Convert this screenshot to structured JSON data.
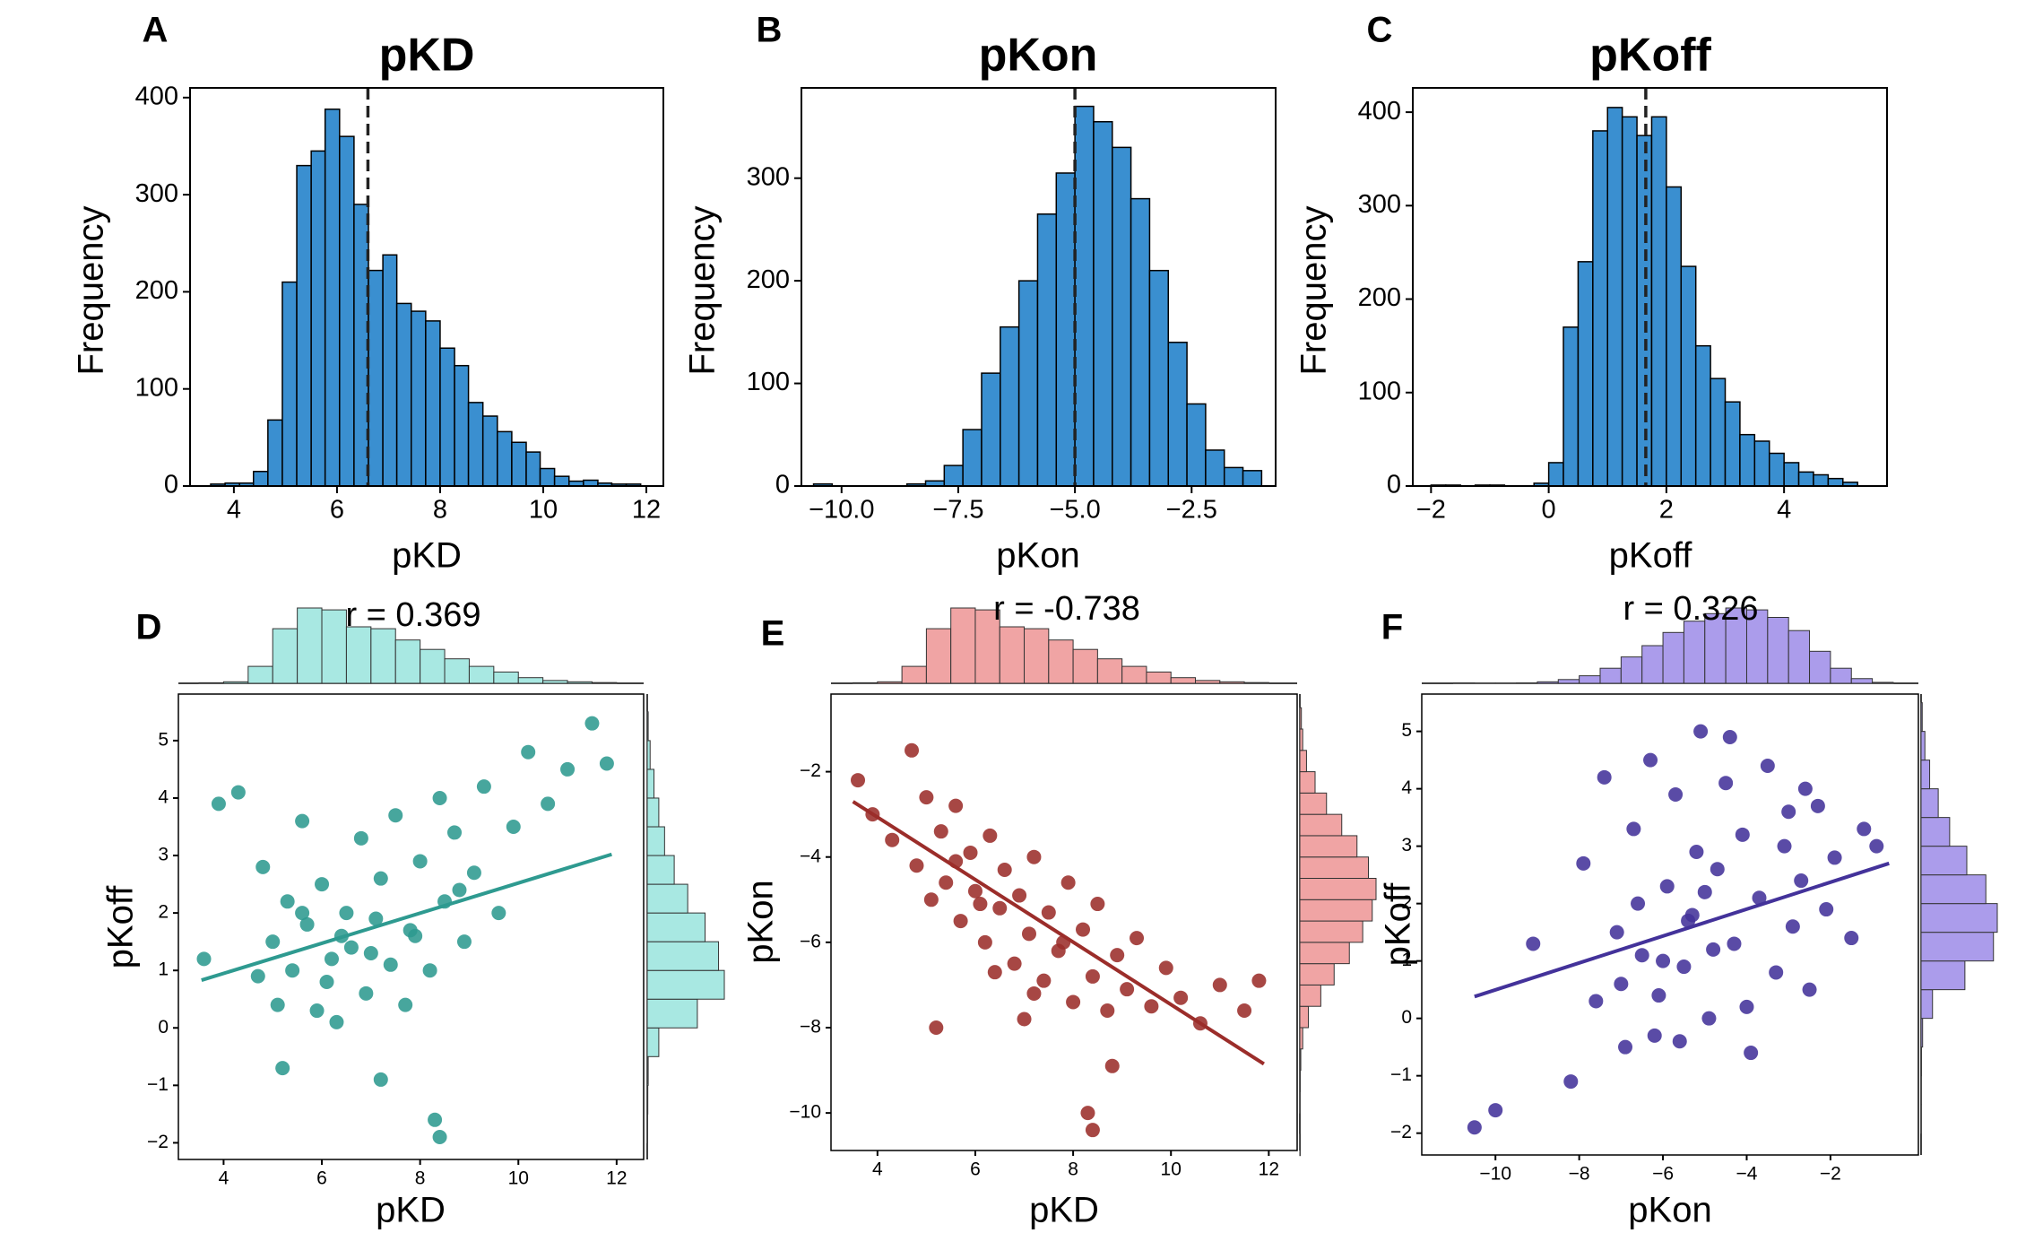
{
  "chart_data": [
    {
      "type": "histogram",
      "panel_label": "A",
      "title": "pKD",
      "xlabel": "pKD",
      "ylabel": "Frequency",
      "color": "#3a8fd0",
      "bins": [
        3.55,
        3.83,
        4.11,
        4.38,
        4.66,
        4.94,
        5.22,
        5.5,
        5.77,
        6.05,
        6.33,
        6.61,
        6.89,
        7.16,
        7.44,
        7.72,
        8.0,
        8.28,
        8.55,
        8.83,
        9.11,
        9.39,
        9.67,
        9.94,
        10.22,
        10.5,
        10.78,
        11.06,
        11.33,
        11.61,
        11.89
      ],
      "counts": [
        2,
        3,
        3,
        15,
        68,
        210,
        330,
        345,
        388,
        360,
        290,
        222,
        238,
        188,
        180,
        170,
        142,
        124,
        86,
        72,
        56,
        45,
        35,
        18,
        10,
        5,
        6,
        3,
        2,
        2
      ],
      "mean": 6.6,
      "xlim": [
        3.15,
        12.33
      ],
      "xticks": [
        4,
        6,
        8,
        10,
        12
      ],
      "ylim": [
        0,
        410
      ],
      "yticks": [
        0,
        100,
        200,
        300,
        400
      ]
    },
    {
      "type": "histogram",
      "panel_label": "B",
      "title": "pKon",
      "xlabel": "pKon",
      "ylabel": "Frequency",
      "color": "#3a8fd0",
      "bins": [
        -10.6,
        -10.2,
        -9.8,
        -9.4,
        -9.0,
        -8.6,
        -8.2,
        -7.8,
        -7.4,
        -7.0,
        -6.6,
        -6.2,
        -5.8,
        -5.4,
        -5.0,
        -4.6,
        -4.2,
        -3.8,
        -3.4,
        -3.0,
        -2.6,
        -2.2,
        -1.8,
        -1.4,
        -1.0
      ],
      "counts": [
        2,
        0,
        0,
        0,
        0,
        2,
        5,
        20,
        55,
        110,
        155,
        200,
        265,
        305,
        370,
        355,
        330,
        280,
        210,
        140,
        80,
        35,
        18,
        15
      ],
      "mean": -5.0,
      "xlim": [
        -10.86,
        -0.7
      ],
      "xticks": [
        {
          "value": -10,
          "label": "−10.0"
        },
        {
          "value": -7.5,
          "label": "−7.5"
        },
        {
          "value": -5,
          "label": "−5.0"
        },
        {
          "value": -2.5,
          "label": "−2.5"
        }
      ],
      "ylim": [
        0,
        388
      ],
      "yticks": [
        0,
        100,
        200,
        300
      ]
    },
    {
      "type": "histogram",
      "panel_label": "C",
      "title": "pKoff",
      "xlabel": "pKoff",
      "ylabel": "Frequency",
      "color": "#3a8fd0",
      "bins": [
        -2.0,
        -1.75,
        -1.5,
        -1.25,
        -1.0,
        -0.75,
        -0.5,
        -0.25,
        0,
        0.25,
        0.5,
        0.75,
        1.0,
        1.25,
        1.5,
        1.75,
        2.0,
        2.25,
        2.5,
        2.75,
        3.0,
        3.25,
        3.5,
        3.75,
        4.0,
        4.25,
        4.5,
        4.75,
        5.0,
        5.25
      ],
      "counts": [
        1,
        1,
        0,
        1,
        1,
        0,
        0,
        3,
        25,
        170,
        240,
        380,
        405,
        395,
        375,
        395,
        320,
        235,
        150,
        115,
        90,
        55,
        48,
        35,
        25,
        15,
        12,
        8,
        4
      ],
      "mean": 1.65,
      "xlim": [
        -2.31,
        5.75
      ],
      "xticks": [
        {
          "value": -2,
          "label": "−2"
        },
        0,
        2,
        4
      ],
      "ylim": [
        0,
        426
      ],
      "yticks": [
        0,
        100,
        200,
        300,
        400
      ]
    },
    {
      "type": "scatter",
      "panel_label": "D",
      "annotation": "r = 0.369",
      "xlabel": "pKD",
      "ylabel": "pKoff",
      "color": "#2e9a90",
      "marginal_color": "#a8e8e2",
      "marginal_edge": "#40c8c0",
      "x": [
        3.6,
        3.9,
        4.3,
        4.7,
        4.8,
        5.0,
        5.1,
        5.3,
        5.4,
        5.6,
        5.7,
        5.9,
        6.0,
        6.2,
        6.3,
        6.5,
        6.6,
        6.8,
        6.9,
        7.1,
        7.2,
        7.4,
        7.5,
        7.7,
        7.9,
        8.0,
        8.2,
        8.4,
        8.5,
        8.7,
        8.9,
        9.1,
        9.3,
        9.6,
        9.9,
        10.2,
        10.6,
        11.0,
        11.5,
        11.8,
        5.2,
        6.1,
        7.0,
        7.8,
        8.3,
        8.4,
        7.2,
        5.6,
        6.4,
        8.8
      ],
      "y": [
        1.2,
        3.9,
        4.1,
        0.9,
        2.8,
        1.5,
        0.4,
        2.2,
        1.0,
        3.6,
        1.8,
        0.3,
        2.5,
        1.2,
        0.1,
        2.0,
        1.4,
        3.3,
        0.6,
        1.9,
        2.6,
        1.1,
        3.7,
        0.4,
        1.6,
        2.9,
        1.0,
        4.0,
        2.2,
        3.4,
        1.5,
        2.7,
        4.2,
        2.0,
        3.5,
        4.8,
        3.9,
        4.5,
        5.3,
        4.6,
        -0.7,
        0.8,
        1.3,
        1.7,
        -1.6,
        -1.9,
        -0.9,
        2.0,
        1.6,
        2.4
      ],
      "regression": {
        "x": [
          3.55,
          11.9
        ],
        "y": [
          0.83,
          3.02
        ]
      },
      "x_marginal": {
        "bins": [
          3.5,
          4.0,
          4.5,
          5.0,
          5.5,
          6.0,
          6.5,
          7.0,
          7.5,
          8.0,
          8.5,
          9.0,
          9.5,
          10.0,
          10.5,
          11.0,
          11.5,
          12.0
        ],
        "counts": [
          3,
          8,
          90,
          290,
          400,
          390,
          300,
          290,
          230,
          180,
          130,
          90,
          60,
          30,
          15,
          8,
          4
        ]
      },
      "y_marginal": {
        "bins": [
          -2.0,
          -1.5,
          -1.0,
          -0.5,
          0,
          0.5,
          1.0,
          1.5,
          2.0,
          2.5,
          3.0,
          3.5,
          4.0,
          4.5,
          5.0,
          5.5
        ],
        "counts": [
          2,
          3,
          5,
          60,
          260,
          400,
          370,
          300,
          210,
          140,
          90,
          60,
          35,
          15,
          5
        ]
      },
      "xlim": [
        3.08,
        12.55
      ],
      "xticks": [
        4,
        6,
        8,
        10,
        12
      ],
      "ylim": [
        -2.29,
        5.81
      ],
      "yticks": [
        {
          "value": -2,
          "label": "−2"
        },
        {
          "value": -1,
          "label": "−1"
        },
        0,
        1,
        2,
        3,
        4,
        5
      ]
    },
    {
      "type": "scatter",
      "panel_label": "E",
      "annotation": "r = -0.738",
      "xlabel": "pKD",
      "ylabel": "pKon",
      "color": "#9b2d2a",
      "marginal_color": "#f0a4a4",
      "marginal_edge": "#d05050",
      "x": [
        3.6,
        3.9,
        4.3,
        4.7,
        4.8,
        5.0,
        5.1,
        5.3,
        5.4,
        5.6,
        5.7,
        5.9,
        6.0,
        6.2,
        6.3,
        6.5,
        6.6,
        6.8,
        6.9,
        7.1,
        7.2,
        7.4,
        7.5,
        7.7,
        7.9,
        8.0,
        8.2,
        8.4,
        8.5,
        8.7,
        8.9,
        9.1,
        9.3,
        9.6,
        9.9,
        10.2,
        10.6,
        11.0,
        11.5,
        11.8,
        5.2,
        6.1,
        7.0,
        7.8,
        8.3,
        8.4,
        7.2,
        5.6,
        6.4,
        8.8
      ],
      "y": [
        -2.2,
        -3.0,
        -3.6,
        -1.5,
        -4.2,
        -2.6,
        -5.0,
        -3.4,
        -4.6,
        -2.8,
        -5.5,
        -3.9,
        -4.8,
        -6.0,
        -3.5,
        -5.2,
        -4.3,
        -6.5,
        -4.9,
        -5.8,
        -4.0,
        -6.9,
        -5.3,
        -6.2,
        -4.6,
        -7.4,
        -5.7,
        -6.8,
        -5.1,
        -7.6,
        -6.3,
        -7.1,
        -5.9,
        -7.5,
        -6.6,
        -7.3,
        -7.9,
        -7.0,
        -7.6,
        -6.9,
        -8.0,
        -5.1,
        -7.8,
        -6.0,
        -10.0,
        -10.4,
        -7.2,
        -4.1,
        -6.7,
        -8.9
      ],
      "regression": {
        "x": [
          3.5,
          11.9
        ],
        "y": [
          -2.7,
          -8.85
        ]
      },
      "x_marginal": {
        "bins": [
          3.5,
          4.0,
          4.5,
          5.0,
          5.5,
          6.0,
          6.5,
          7.0,
          7.5,
          8.0,
          8.5,
          9.0,
          9.5,
          10.0,
          10.5,
          11.0,
          11.5,
          12.0
        ],
        "counts": [
          3,
          8,
          90,
          290,
          400,
          390,
          300,
          290,
          230,
          180,
          130,
          90,
          60,
          30,
          15,
          8,
          4
        ]
      },
      "y_marginal": {
        "bins": [
          -11.0,
          -10.5,
          -10.0,
          -9.5,
          -9.0,
          -8.5,
          -8.0,
          -7.5,
          -7.0,
          -6.5,
          -6.0,
          -5.5,
          -5.0,
          -4.5,
          -4.0,
          -3.5,
          -3.0,
          -2.5,
          -2.0,
          -1.5,
          -1.0,
          -0.5
        ],
        "counts": [
          2,
          0,
          1,
          2,
          5,
          15,
          45,
          110,
          180,
          260,
          330,
          380,
          400,
          360,
          300,
          220,
          140,
          80,
          35,
          15,
          8
        ]
      },
      "xlim": [
        3.05,
        12.58
      ],
      "xticks": [
        4,
        6,
        8,
        10,
        12
      ],
      "ylim": [
        -10.88,
        -0.18
      ],
      "yticks": [
        {
          "value": -10,
          "label": "−10"
        },
        {
          "value": -8,
          "label": "−8"
        },
        {
          "value": -6,
          "label": "−6"
        },
        {
          "value": -4,
          "label": "−4"
        },
        {
          "value": -2,
          "label": "−2"
        }
      ]
    },
    {
      "type": "scatter",
      "panel_label": "F",
      "annotation": "r = 0.326",
      "xlabel": "pKon",
      "ylabel": "pKoff",
      "color": "#43329a",
      "marginal_color": "#ab9ceb",
      "marginal_edge": "#5544c4",
      "x": [
        -10.5,
        -10.0,
        -9.1,
        -8.2,
        -7.9,
        -7.6,
        -7.4,
        -7.1,
        -6.9,
        -6.7,
        -6.5,
        -6.3,
        -6.1,
        -5.9,
        -5.7,
        -5.5,
        -5.3,
        -5.1,
        -4.9,
        -4.7,
        -4.5,
        -4.3,
        -4.1,
        -3.9,
        -3.7,
        -3.5,
        -3.3,
        -3.1,
        -2.9,
        -2.7,
        -2.5,
        -2.3,
        -2.1,
        -1.9,
        -1.5,
        -1.2,
        -0.9,
        -6.0,
        -5.0,
        -4.4,
        -5.6,
        -4.8,
        -6.6,
        -3.0,
        -7.0,
        -5.4,
        -4.0,
        -2.6,
        -6.2,
        -5.2
      ],
      "y": [
        -1.9,
        -1.6,
        1.3,
        -1.1,
        2.7,
        0.3,
        4.2,
        1.5,
        -0.5,
        3.3,
        1.1,
        4.5,
        0.4,
        2.3,
        3.9,
        0.9,
        1.8,
        5.0,
        0.0,
        2.6,
        4.1,
        1.3,
        3.2,
        -0.6,
        2.1,
        4.4,
        0.8,
        3.0,
        1.6,
        2.4,
        0.5,
        3.7,
        1.9,
        2.8,
        1.4,
        3.3,
        3.0,
        1.0,
        2.2,
        4.9,
        -0.4,
        1.2,
        2.0,
        3.6,
        0.6,
        1.7,
        0.2,
        4.0,
        -0.3,
        2.9
      ],
      "regression": {
        "x": [
          -10.5,
          -0.6
        ],
        "y": [
          0.38,
          2.7
        ]
      },
      "x_marginal": {
        "bins": [
          -11.0,
          -10.5,
          -10.0,
          -9.5,
          -9.0,
          -8.5,
          -8.0,
          -7.5,
          -7.0,
          -6.5,
          -6.0,
          -5.5,
          -5.0,
          -4.5,
          -4.0,
          -3.5,
          -3.0,
          -2.5,
          -2.0,
          -1.5,
          -1.0,
          -0.5
        ],
        "counts": [
          2,
          1,
          1,
          2,
          8,
          20,
          40,
          80,
          140,
          200,
          270,
          330,
          370,
          400,
          390,
          350,
          280,
          170,
          80,
          25,
          5
        ]
      },
      "y_marginal": {
        "bins": [
          -2.0,
          -1.5,
          -1.0,
          -0.5,
          0,
          0.5,
          1.0,
          1.5,
          2.0,
          2.5,
          3.0,
          3.5,
          4.0,
          4.5,
          5.0,
          5.5
        ],
        "counts": [
          1,
          1,
          2,
          8,
          60,
          230,
          380,
          400,
          340,
          240,
          150,
          90,
          45,
          20,
          6
        ]
      },
      "xlim": [
        -11.76,
        0.1
      ],
      "xticks": [
        {
          "value": -10,
          "label": "−10"
        },
        {
          "value": -8,
          "label": "−8"
        },
        {
          "value": -6,
          "label": "−6"
        },
        {
          "value": -4,
          "label": "−4"
        },
        {
          "value": -2,
          "label": "−2"
        }
      ],
      "ylim": [
        -2.38,
        5.65
      ],
      "yticks": [
        {
          "value": -2,
          "label": "−2"
        },
        {
          "value": -1,
          "label": "−1"
        },
        0,
        1,
        2,
        3,
        4,
        5
      ]
    }
  ]
}
